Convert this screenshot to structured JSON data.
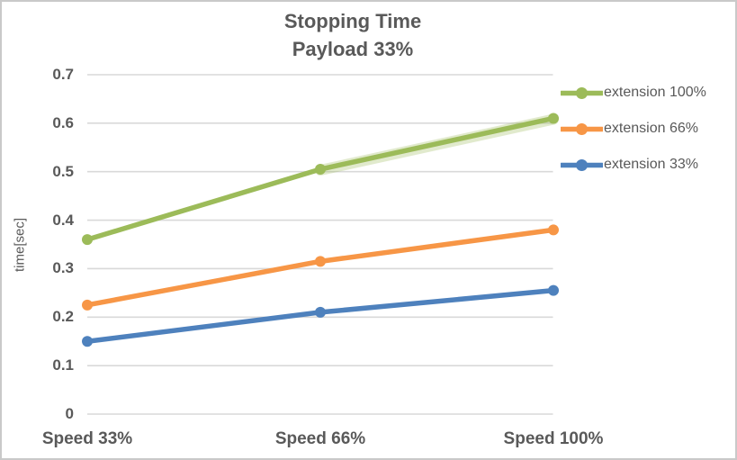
{
  "chart_data": {
    "type": "line",
    "title": "Stopping Time",
    "subtitle": "Payload 33%",
    "categories": [
      "Speed 33%",
      "Speed 66%",
      "Speed 100%"
    ],
    "series": [
      {
        "name": "extension 100%",
        "color": "#9CBB59",
        "values": [
          0.36,
          0.505,
          0.61
        ],
        "halo_last_segment": true
      },
      {
        "name": "extension 66%",
        "color": "#F79646",
        "values": [
          0.225,
          0.315,
          0.38
        ],
        "halo_last_segment": false
      },
      {
        "name": "extension 33%",
        "color": "#4E81BD",
        "values": [
          0.15,
          0.21,
          0.255
        ],
        "halo_last_segment": false
      }
    ],
    "xlabel": "",
    "ylabel": "time[sec]",
    "ylim": [
      0,
      0.7
    ],
    "ytick_labels": [
      "0",
      "0.1",
      "0.2",
      "0.3",
      "0.4",
      "0.5",
      "0.6",
      "0.7"
    ],
    "grid": true,
    "legend_position": "right"
  },
  "colors": {
    "text": "#595959",
    "grid": "#D9D9D9",
    "border": "#C9C9C9",
    "background": "#FFFFFF"
  }
}
